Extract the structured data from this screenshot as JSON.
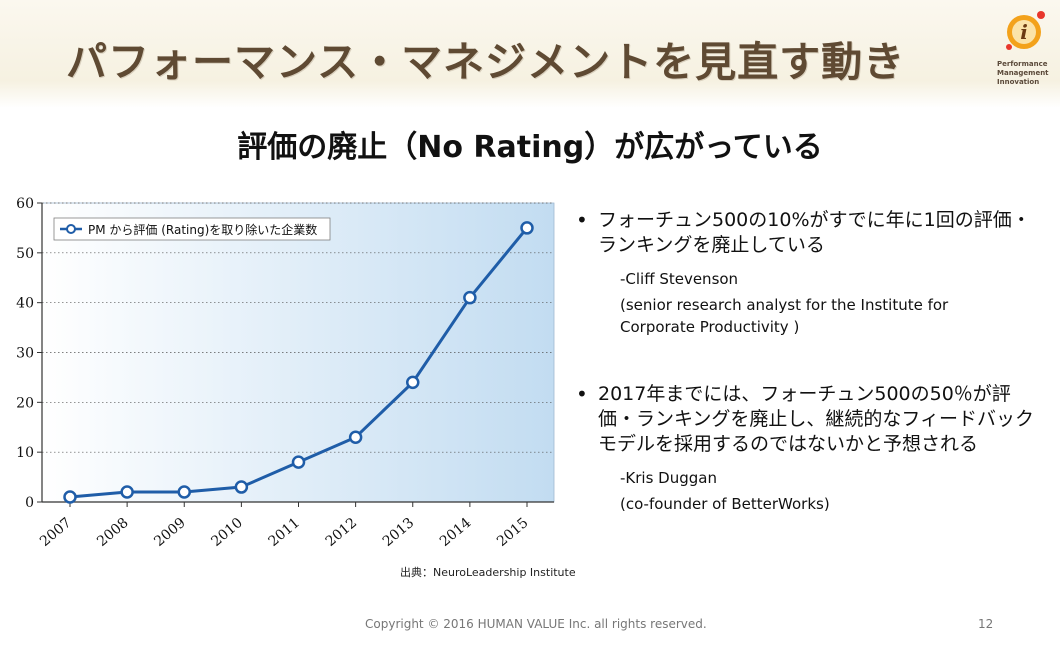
{
  "slide": {
    "title": "パフォーマンス・マネジメントを見直す動き",
    "subtitle": "評価の廃止（No Rating）が広がっている",
    "logo_lines": [
      "Performance",
      "Management",
      "Innovation"
    ],
    "logo_mark": "i"
  },
  "chart_data": {
    "type": "line",
    "title": "",
    "xlabel": "",
    "ylabel": "",
    "x": [
      "2007",
      "2008",
      "2009",
      "2010",
      "2011",
      "2012",
      "2013",
      "2014",
      "2015"
    ],
    "series": [
      {
        "name": "PM から評価 (Rating)を取り除いた企業数",
        "values": [
          1,
          2,
          2,
          3,
          8,
          13,
          24,
          41,
          55
        ]
      }
    ],
    "ylim": [
      0,
      60
    ],
    "yticks": [
      "0",
      "10",
      "20",
      "30",
      "40",
      "50",
      "60"
    ],
    "grid": true,
    "legend_position": "top-left",
    "colors": {
      "line": "#1f5da8",
      "marker_fill": "#ffffff",
      "plot_bg_left": "#ffffff",
      "plot_bg_right": "#c2dcf1"
    }
  },
  "source": "出典：NeuroLeadership Institute",
  "bullets": [
    {
      "marker": "•",
      "text": "フォーチュン500の10%がすでに年に1回の評価・ランキングを廃止している",
      "attribution": [
        "-Cliff Stevenson",
        "(senior research analyst for the Institute for Corporate Productivity )"
      ]
    },
    {
      "marker": "•",
      "text": "2017年までには、フォーチュン500の50％が評価・ランキングを廃止し、継続的なフィードバックモデルを採用するのではないかと予想される",
      "attribution": [
        "-Kris Duggan",
        "(co-founder of BetterWorks)"
      ]
    }
  ],
  "footer": {
    "copyright": "Copyright © 2016 HUMAN VALUE Inc. all rights reserved.",
    "page_number": "12"
  }
}
